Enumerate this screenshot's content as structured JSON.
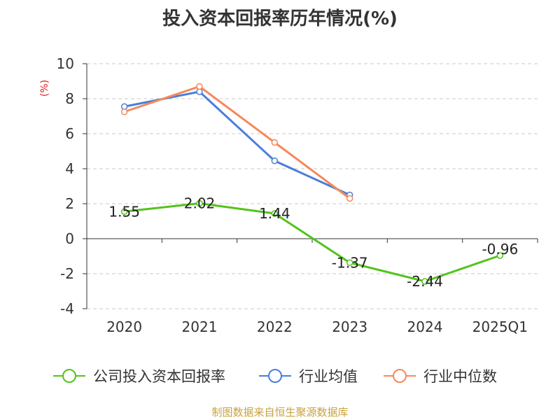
{
  "chart_data": {
    "type": "line",
    "title": "投入资本回报率历年情况(%)",
    "ylabel": "(%)",
    "xlabel": "",
    "categories": [
      "2020",
      "2021",
      "2022",
      "2023",
      "2024",
      "2025Q1"
    ],
    "ylim": [
      -4,
      10
    ],
    "yticks": [
      -4,
      -2,
      0,
      2,
      4,
      6,
      8,
      10
    ],
    "grid": true,
    "legend_position": "bottom",
    "series": [
      {
        "name": "公司投入资本回报率",
        "color": "#52c41a",
        "values": [
          1.55,
          2.02,
          1.44,
          -1.37,
          -2.44,
          -0.96
        ],
        "labels": [
          "1.55",
          "2.02",
          "1.44",
          "-1.37",
          "-2.44",
          "-0.96"
        ]
      },
      {
        "name": "行业均值",
        "color": "#4a7fd9",
        "values": [
          7.55,
          8.4,
          4.45,
          2.5,
          null,
          null
        ]
      },
      {
        "name": "行业中位数",
        "color": "#f5895a",
        "values": [
          7.25,
          8.7,
          5.5,
          2.3,
          null,
          null
        ]
      }
    ]
  },
  "source": "制图数据来自恒生聚源数据库"
}
